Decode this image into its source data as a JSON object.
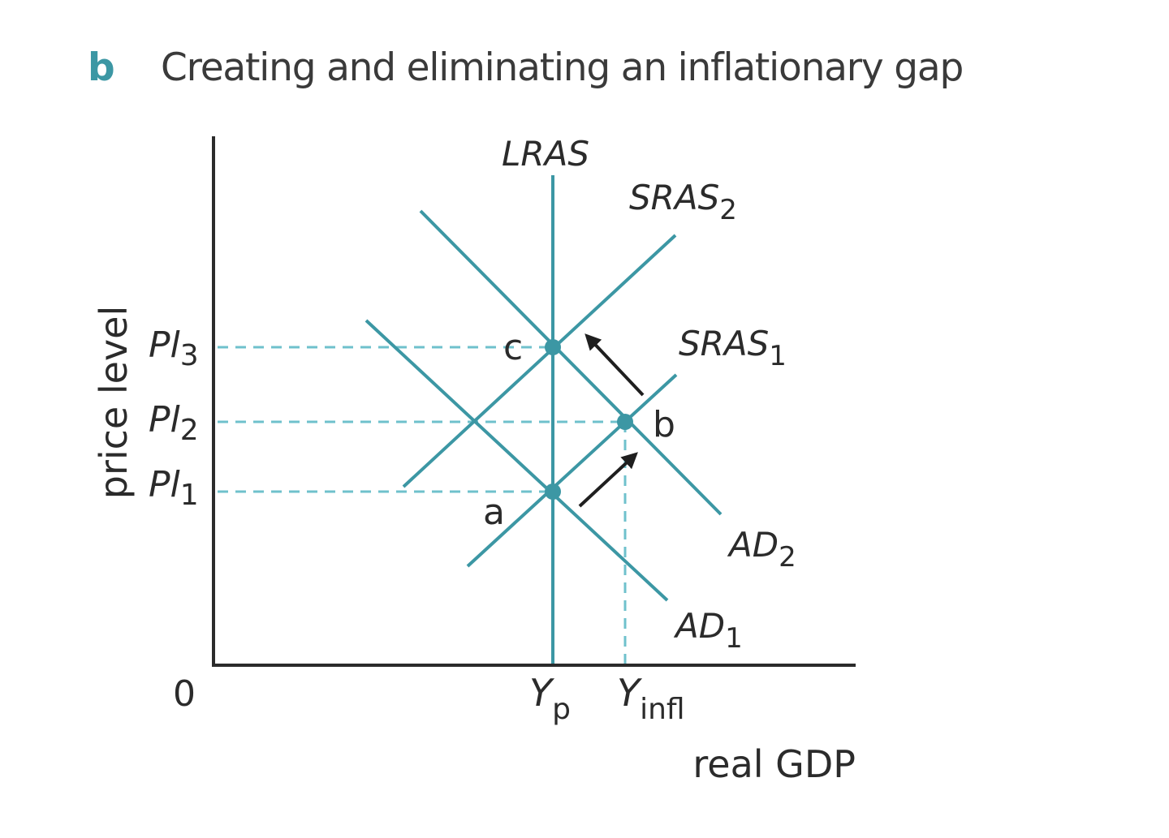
{
  "header": {
    "panel_letter": "b",
    "title": "Creating and eliminating an inflationary gap"
  },
  "colors": {
    "curve": "#3c97a4",
    "dashed": "#6fc1cc",
    "axis": "#2b2b2b",
    "arrow": "#1f1f1f",
    "title_letter": "#3c97a4",
    "text": "#2b2b2b"
  },
  "axes": {
    "y_label": "price level",
    "x_label": "real GDP",
    "origin": "0"
  },
  "y_ticks": [
    {
      "base": "Pl",
      "sub": "3"
    },
    {
      "base": "Pl",
      "sub": "2"
    },
    {
      "base": "Pl",
      "sub": "1"
    }
  ],
  "x_ticks": [
    {
      "base": "Y",
      "sub": "p"
    },
    {
      "base": "Y",
      "sub": "infl"
    }
  ],
  "curves": {
    "lras": {
      "base": "LRAS",
      "sub": ""
    },
    "sras2": {
      "base": "SRAS",
      "sub": "2"
    },
    "sras1": {
      "base": "SRAS",
      "sub": "1"
    },
    "ad2": {
      "base": "AD",
      "sub": "2"
    },
    "ad1": {
      "base": "AD",
      "sub": "1"
    }
  },
  "points": {
    "a": "a",
    "b": "b",
    "c": "c"
  }
}
